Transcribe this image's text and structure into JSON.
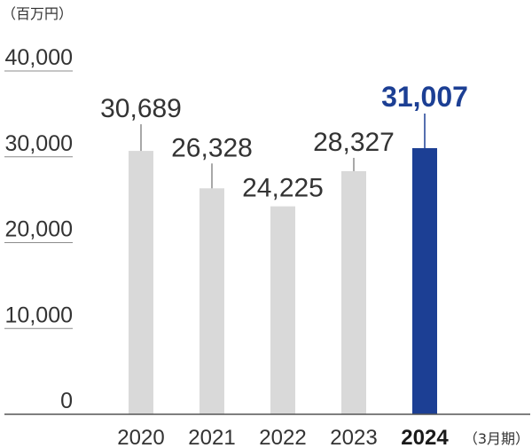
{
  "chart_data": {
    "type": "bar",
    "ylabel": "（百万円）",
    "xlabel": "（3月期）",
    "categories": [
      "2020",
      "2021",
      "2022",
      "2023",
      "2024"
    ],
    "values": [
      30689,
      26328,
      24225,
      28327,
      31007
    ],
    "value_labels": [
      "30,689",
      "26,328",
      "24,225",
      "28,327",
      "31,007"
    ],
    "yticks": [
      0,
      10000,
      20000,
      30000,
      40000
    ],
    "ytick_labels": [
      "0",
      "10,000",
      "20,000",
      "30,000",
      "40,000"
    ],
    "ylim": [
      0,
      40000
    ],
    "highlight_category": "2024",
    "colors": {
      "bar": "#d9d9d9",
      "highlight": "#1c3f94",
      "leader": "#8a8a8a",
      "axis": "#555555"
    }
  }
}
